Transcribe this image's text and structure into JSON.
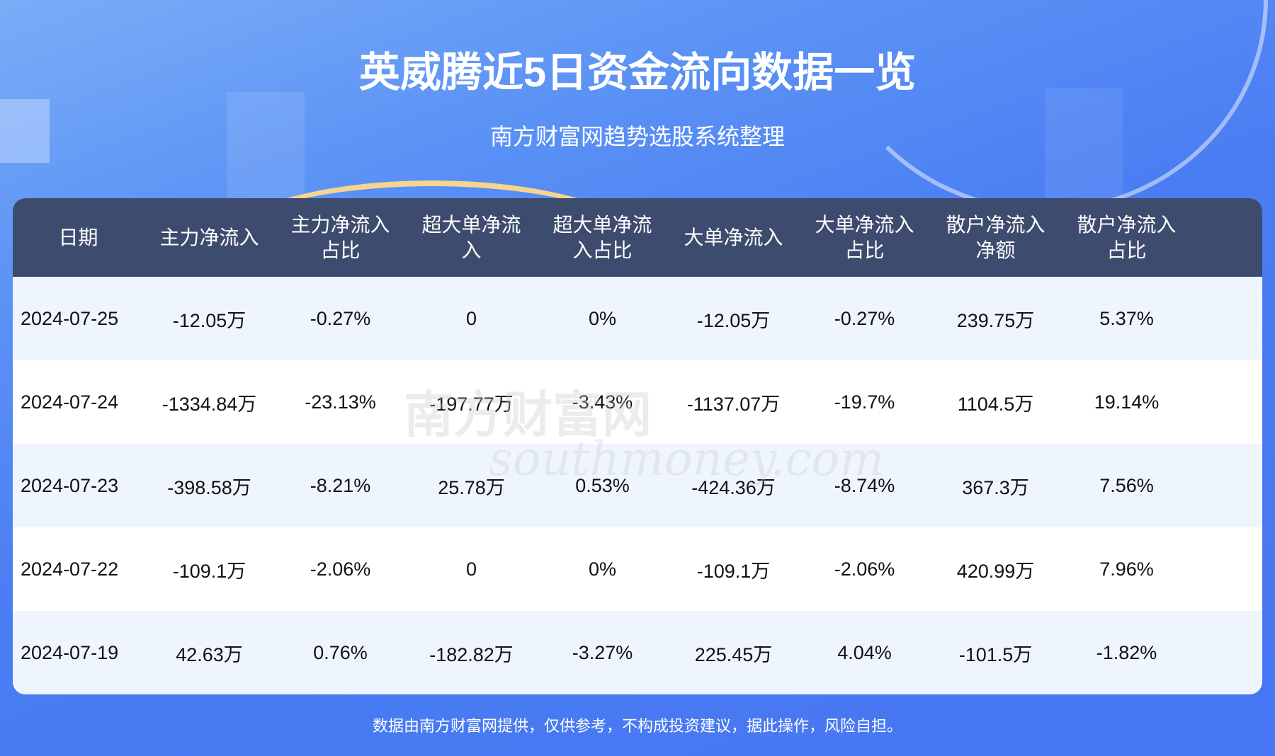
{
  "title": "英威腾近5日资金流向数据一览",
  "subtitle": "南方财富网趋势选股系统整理",
  "columns": [
    "日期",
    "主力净流入",
    "主力净流入\n占比",
    "超大单净流\n入",
    "超大单净流\n入占比",
    "大单净流入",
    "大单净流入\n占比",
    "散户净流入\n净额",
    "散户净流入\n占比"
  ],
  "rows": [
    [
      "2024-07-25",
      "-12.05万",
      "-0.27%",
      "0",
      "0%",
      "-12.05万",
      "-0.27%",
      "239.75万",
      "5.37%"
    ],
    [
      "2024-07-24",
      "-1334.84万",
      "-23.13%",
      "-197.77万",
      "-3.43%",
      "-1137.07万",
      "-19.7%",
      "1104.5万",
      "19.14%"
    ],
    [
      "2024-07-23",
      "-398.58万",
      "-8.21%",
      "25.78万",
      "0.53%",
      "-424.36万",
      "-8.74%",
      "367.3万",
      "7.56%"
    ],
    [
      "2024-07-22",
      "-109.1万",
      "-2.06%",
      "0",
      "0%",
      "-109.1万",
      "-2.06%",
      "420.99万",
      "7.96%"
    ],
    [
      "2024-07-19",
      "42.63万",
      "0.76%",
      "-182.82万",
      "-3.27%",
      "225.45万",
      "4.04%",
      "-101.5万",
      "-1.82%"
    ]
  ],
  "watermark": {
    "cn": "南方财富网",
    "en": "southmoney.com"
  },
  "footer": "数据由南方财富网提供，仅供参考，不构成投资建议，据此操作，风险自担。",
  "colors": {
    "background": "#4676f2",
    "header": "#3d4b6e",
    "row_alt": "#eef5fe"
  }
}
